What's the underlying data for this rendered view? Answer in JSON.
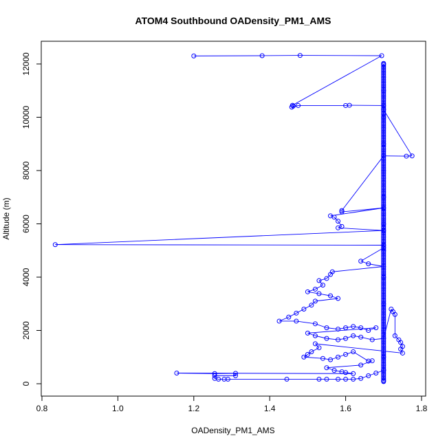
{
  "chart_data": {
    "type": "scatter",
    "title": "ATOM4 Southbound OADensity_PM1_AMS",
    "xlabel": "OADensity_PM1_AMS",
    "ylabel": "Altitude (m)",
    "xlim": [
      0.8,
      1.8
    ],
    "ylim": [
      0,
      12500
    ],
    "x_ticks": [
      "0.8",
      "1.0",
      "1.2",
      "1.4",
      "1.6",
      "1.8"
    ],
    "y_ticks": [
      "0",
      "2000",
      "4000",
      "6000",
      "8000",
      "10000",
      "12000"
    ],
    "grid": false,
    "legend": "none",
    "series_color": "#0000ff",
    "marker": "open-circle",
    "connected": true,
    "points": [
      [
        1.2,
        12300
      ],
      [
        1.38,
        12310
      ],
      [
        1.48,
        12320
      ],
      [
        1.695,
        12310
      ],
      [
        1.46,
        10450
      ],
      [
        1.462,
        10420
      ],
      [
        1.458,
        10380
      ],
      [
        1.475,
        10440
      ],
      [
        1.6,
        10440
      ],
      [
        1.61,
        10450
      ],
      [
        1.7,
        10440
      ],
      [
        1.7,
        10280
      ],
      [
        1.775,
        8550
      ],
      [
        1.76,
        8540
      ],
      [
        1.7,
        8550
      ],
      [
        1.59,
        6500
      ],
      [
        1.59,
        6450
      ],
      [
        1.7,
        6600
      ],
      [
        1.56,
        6300
      ],
      [
        1.57,
        6250
      ],
      [
        1.58,
        6100
      ],
      [
        1.59,
        5900
      ],
      [
        1.58,
        5850
      ],
      [
        1.7,
        5750
      ],
      [
        0.835,
        5220
      ],
      [
        1.7,
        5200
      ],
      [
        1.7,
        5100
      ],
      [
        1.64,
        4600
      ],
      [
        1.66,
        4500
      ],
      [
        1.7,
        4400
      ],
      [
        1.565,
        4200
      ],
      [
        1.56,
        4100
      ],
      [
        1.55,
        3950
      ],
      [
        1.53,
        3870
      ],
      [
        1.54,
        3700
      ],
      [
        1.52,
        3550
      ],
      [
        1.5,
        3450
      ],
      [
        1.53,
        3380
      ],
      [
        1.56,
        3300
      ],
      [
        1.58,
        3200
      ],
      [
        1.52,
        3100
      ],
      [
        1.51,
        2950
      ],
      [
        1.49,
        2800
      ],
      [
        1.47,
        2650
      ],
      [
        1.45,
        2500
      ],
      [
        1.425,
        2350
      ],
      [
        1.47,
        2350
      ],
      [
        1.52,
        2250
      ],
      [
        1.55,
        2100
      ],
      [
        1.58,
        2050
      ],
      [
        1.6,
        2100
      ],
      [
        1.62,
        2150
      ],
      [
        1.64,
        2100
      ],
      [
        1.66,
        2000
      ],
      [
        1.68,
        2100
      ],
      [
        1.5,
        1900
      ],
      [
        1.52,
        1800
      ],
      [
        1.55,
        1700
      ],
      [
        1.58,
        1650
      ],
      [
        1.6,
        1700
      ],
      [
        1.62,
        1800
      ],
      [
        1.64,
        1750
      ],
      [
        1.67,
        1650
      ],
      [
        1.7,
        1700
      ],
      [
        1.72,
        2800
      ],
      [
        1.725,
        2700
      ],
      [
        1.73,
        2600
      ],
      [
        1.73,
        1800
      ],
      [
        1.74,
        1650
      ],
      [
        1.745,
        1550
      ],
      [
        1.75,
        1400
      ],
      [
        1.745,
        1300
      ],
      [
        1.75,
        1150
      ],
      [
        1.52,
        1500
      ],
      [
        1.53,
        1350
      ],
      [
        1.51,
        1200
      ],
      [
        1.5,
        1100
      ],
      [
        1.49,
        1000
      ],
      [
        1.54,
        950
      ],
      [
        1.56,
        900
      ],
      [
        1.58,
        1000
      ],
      [
        1.6,
        1100
      ],
      [
        1.62,
        1200
      ],
      [
        1.66,
        850
      ],
      [
        1.67,
        860
      ],
      [
        1.64,
        700
      ],
      [
        1.55,
        600
      ],
      [
        1.57,
        500
      ],
      [
        1.59,
        450
      ],
      [
        1.6,
        420
      ],
      [
        1.62,
        380
      ],
      [
        1.155,
        400
      ],
      [
        1.255,
        380
      ],
      [
        1.31,
        390
      ],
      [
        1.31,
        300
      ],
      [
        1.255,
        300
      ],
      [
        1.255,
        200
      ],
      [
        1.265,
        170
      ],
      [
        1.28,
        170
      ],
      [
        1.29,
        170
      ],
      [
        1.445,
        170
      ],
      [
        1.53,
        170
      ],
      [
        1.55,
        170
      ],
      [
        1.58,
        170
      ],
      [
        1.6,
        170
      ],
      [
        1.62,
        170
      ],
      [
        1.64,
        200
      ],
      [
        1.66,
        300
      ],
      [
        1.68,
        400
      ],
      [
        1.7,
        500
      ],
      [
        1.7,
        12000
      ],
      [
        1.7,
        11000
      ],
      [
        1.7,
        10000
      ],
      [
        1.7,
        9000
      ],
      [
        1.7,
        8000
      ],
      [
        1.7,
        7000
      ],
      [
        1.7,
        6000
      ],
      [
        1.7,
        5000
      ],
      [
        1.7,
        4000
      ],
      [
        1.7,
        3000
      ],
      [
        1.7,
        2000
      ],
      [
        1.7,
        1000
      ],
      [
        1.7,
        500
      ],
      [
        1.7,
        100
      ]
    ]
  }
}
